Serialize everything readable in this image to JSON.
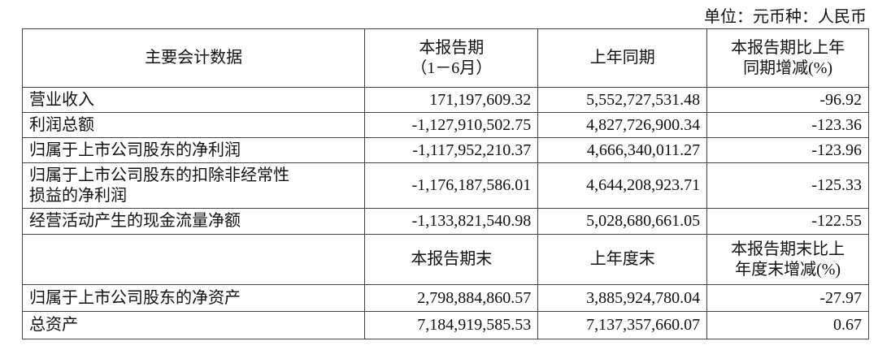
{
  "unit_label": "单位：元币种：人民币",
  "header1": [
    "主要会计数据",
    "本报告期\n（1－6月）",
    "上年同期",
    "本报告期比上年同期增减(%)"
  ],
  "header1_lines": {
    "col2_a": "本报告期",
    "col2_b": "（1－6月）",
    "col4_a": "本报告期比上年",
    "col4_b": "同期增减(%)"
  },
  "rows1": [
    {
      "label": "营业收入",
      "current": "171,197,609.32",
      "prior": "5,552,727,531.48",
      "change": "-96.92"
    },
    {
      "label": "利润总额",
      "current": "-1,127,910,502.75",
      "prior": "4,827,726,900.34",
      "change": "-123.36"
    },
    {
      "label": "归属于上市公司股东的净利润",
      "current": "-1,117,952,210.37",
      "prior": "4,666,340,011.27",
      "change": "-123.96"
    },
    {
      "label_a": "归属于上市公司股东的扣除非经常性",
      "label_b": "损益的净利润",
      "current": "-1,176,187,586.01",
      "prior": "4,644,208,923.71",
      "change": "-125.33"
    },
    {
      "label": "经营活动产生的现金流量净额",
      "current": "-1,133,821,540.98",
      "prior": "5,028,680,661.05",
      "change": "-122.55"
    }
  ],
  "header2": {
    "col2": "本报告期末",
    "col3": "上年度末",
    "col4_a": "本报告期末比上",
    "col4_b": "年度末增减(%)"
  },
  "rows2": [
    {
      "label": "归属于上市公司股东的净资产",
      "current": "2,798,884,860.57",
      "prior": "3,885,924,780.04",
      "change": "-27.97"
    },
    {
      "label": "总资产",
      "current": "7,184,919,585.53",
      "prior": "7,137,357,660.07",
      "change": "0.67"
    }
  ]
}
